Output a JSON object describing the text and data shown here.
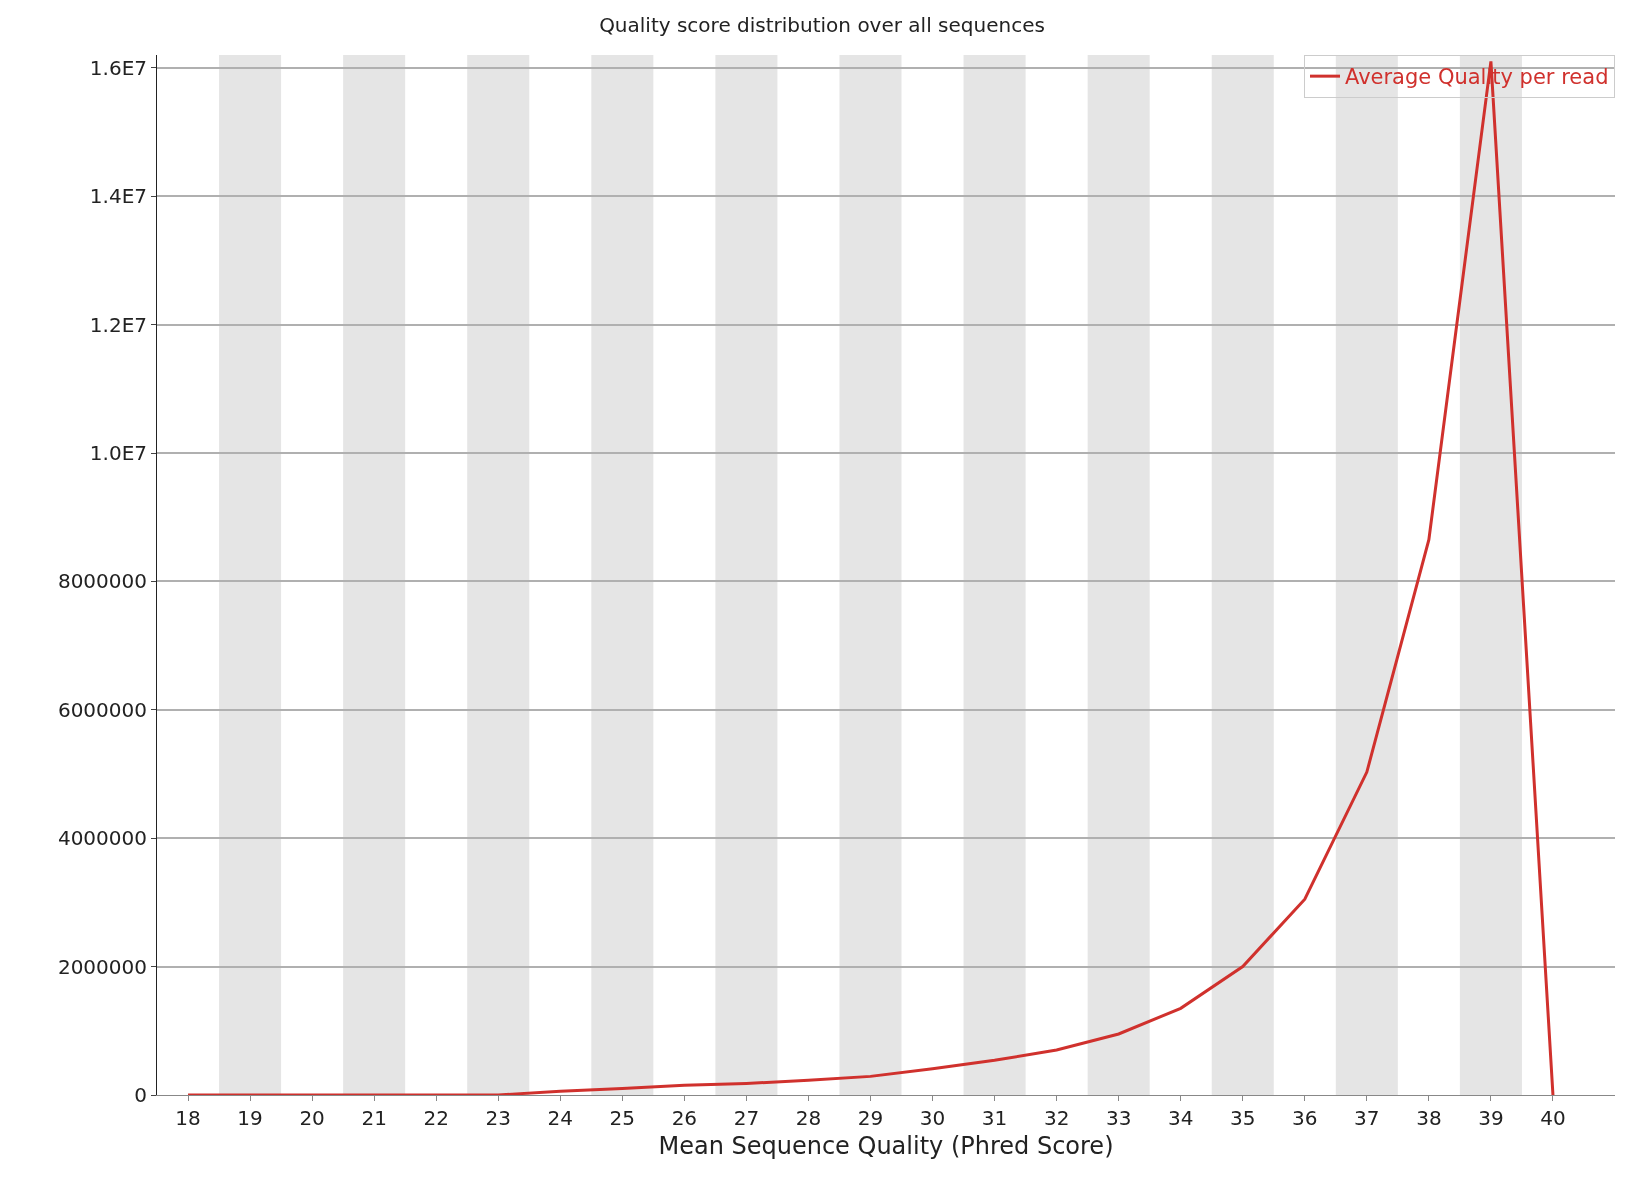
{
  "chart_data": {
    "type": "line",
    "title": "Quality score distribution over all sequences",
    "xlabel": "Mean Sequence Quality (Phred Score)",
    "x": [
      18,
      19,
      20,
      21,
      22,
      23,
      24,
      25,
      26,
      27,
      28,
      29,
      30,
      31,
      32,
      33,
      34,
      35,
      36,
      37,
      38,
      39,
      40
    ],
    "series": [
      {
        "name": "Average Quality per read",
        "color": "#d0312d",
        "values": [
          0,
          0,
          0,
          0,
          0,
          0,
          60000,
          100000,
          150000,
          180000,
          230000,
          290000,
          410000,
          540000,
          700000,
          950000,
          1350000,
          2000000,
          3050000,
          5030000,
          8650000,
          16100000,
          0
        ]
      }
    ],
    "xlim": [
      17.5,
      41
    ],
    "xticks": [
      18,
      19,
      20,
      21,
      22,
      23,
      24,
      25,
      26,
      27,
      28,
      29,
      30,
      31,
      32,
      33,
      34,
      35,
      36,
      37,
      38,
      39,
      40
    ],
    "ylim": [
      0,
      16200000
    ],
    "yticks": [
      0,
      2000000,
      4000000,
      6000000,
      8000000,
      {
        "value": 10000000,
        "label": "1.0E7"
      },
      {
        "value": 12000000,
        "label": "1.2E7"
      },
      {
        "value": 14000000,
        "label": "1.4E7"
      },
      {
        "value": 16000000,
        "label": "1.6E7"
      }
    ],
    "bands": [
      {
        "axis": "x",
        "from": 18.5,
        "to": 19.5,
        "color": "#e5e5e5"
      },
      {
        "axis": "x",
        "from": 20.5,
        "to": 21.5,
        "color": "#e5e5e5"
      },
      {
        "axis": "x",
        "from": 22.5,
        "to": 23.5,
        "color": "#e5e5e5"
      },
      {
        "axis": "x",
        "from": 24.5,
        "to": 25.5,
        "color": "#e5e5e5"
      },
      {
        "axis": "x",
        "from": 26.5,
        "to": 27.5,
        "color": "#e5e5e5"
      },
      {
        "axis": "x",
        "from": 28.5,
        "to": 29.5,
        "color": "#e5e5e5"
      },
      {
        "axis": "x",
        "from": 30.5,
        "to": 31.5,
        "color": "#e5e5e5"
      },
      {
        "axis": "x",
        "from": 32.5,
        "to": 33.5,
        "color": "#e5e5e5"
      },
      {
        "axis": "x",
        "from": 34.5,
        "to": 35.5,
        "color": "#e5e5e5"
      },
      {
        "axis": "x",
        "from": 36.5,
        "to": 37.5,
        "color": "#e5e5e5"
      },
      {
        "axis": "x",
        "from": 38.5,
        "to": 39.5,
        "color": "#e5e5e5"
      }
    ],
    "grid": "y",
    "legend": "top right",
    "marker": "none",
    "line_style": "solid"
  }
}
